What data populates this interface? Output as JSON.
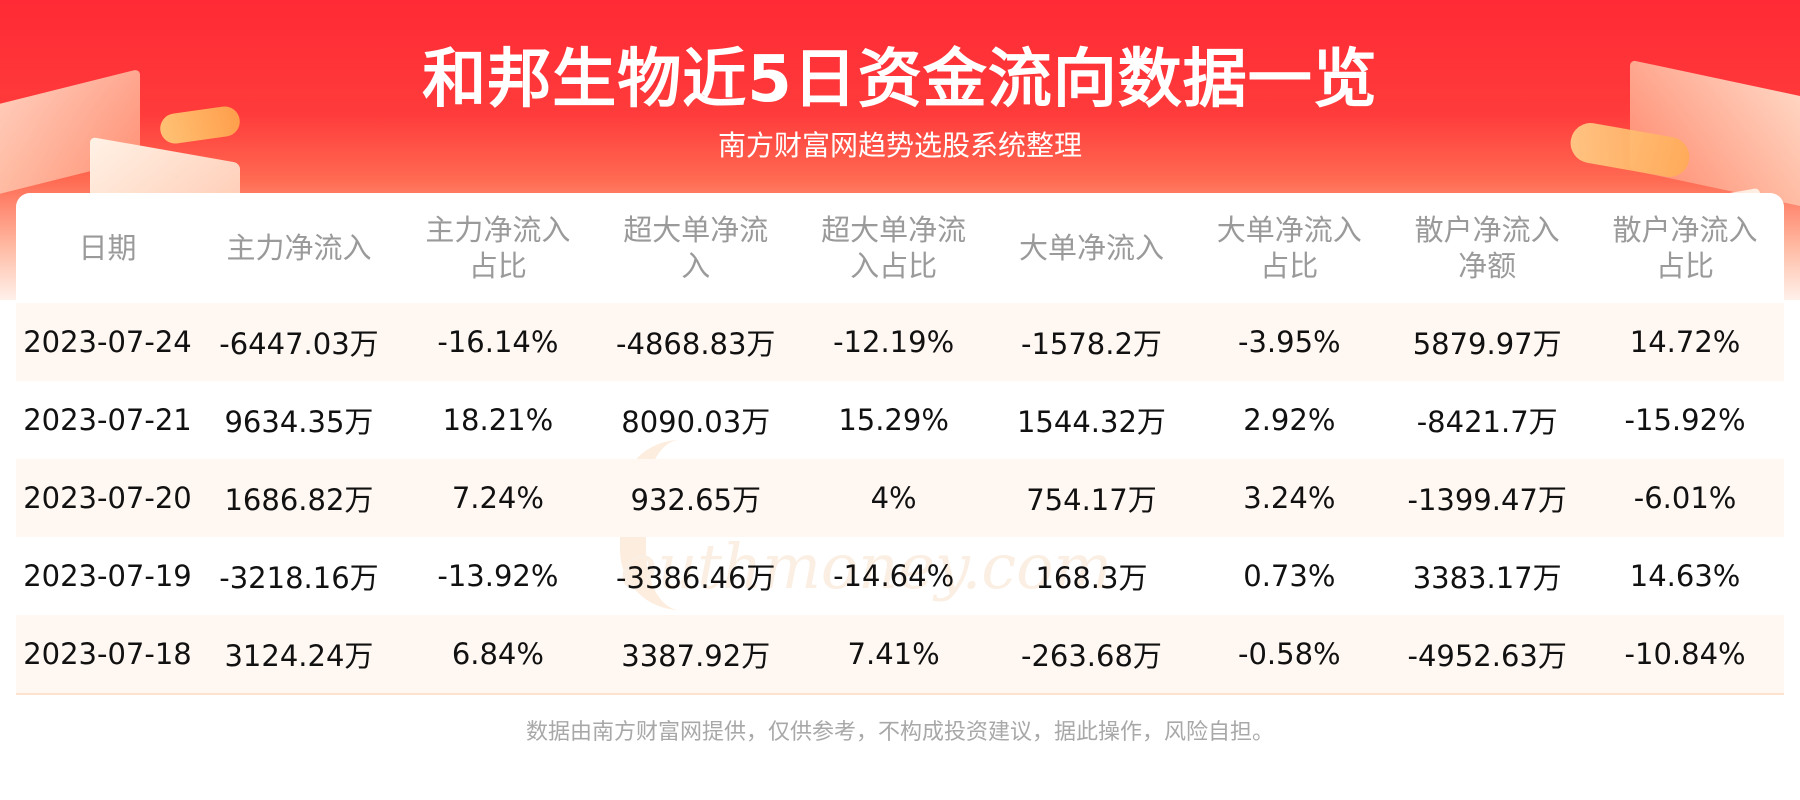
{
  "header": {
    "title": "和邦生物近5日资金流向数据一览",
    "subtitle": "南方财富网趋势选股系统整理"
  },
  "watermark": {
    "text": "南方财富网",
    "sub": "outhmoney.com"
  },
  "table": {
    "columns": [
      "日期",
      "主力净流入",
      "主力净流入占比",
      "超大单净流入",
      "超大单净流入占比",
      "大单净流入",
      "大单净流入占比",
      "散户净流入净额",
      "散户净流入占比"
    ],
    "rows": [
      [
        "2023-07-24",
        "-6447.03万",
        "-16.14%",
        "-4868.83万",
        "-12.19%",
        "-1578.2万",
        "-3.95%",
        "5879.97万",
        "14.72%"
      ],
      [
        "2023-07-21",
        "9634.35万",
        "18.21%",
        "8090.03万",
        "15.29%",
        "1544.32万",
        "2.92%",
        "-8421.7万",
        "-15.92%"
      ],
      [
        "2023-07-20",
        "1686.82万",
        "7.24%",
        "932.65万",
        "4%",
        "754.17万",
        "3.24%",
        "-1399.47万",
        "-6.01%"
      ],
      [
        "2023-07-19",
        "-3218.16万",
        "-13.92%",
        "-3386.46万",
        "-14.64%",
        "168.3万",
        "0.73%",
        "3383.17万",
        "14.63%"
      ],
      [
        "2023-07-18",
        "3124.24万",
        "6.84%",
        "3387.92万",
        "7.41%",
        "-263.68万",
        "-0.58%",
        "-4952.63万",
        "-10.84%"
      ]
    ]
  },
  "footer": {
    "disclaimer": "数据由南方财富网提供，仅供参考，不构成投资建议，据此操作，风险自担。"
  },
  "colors": {
    "banner_red": "#ff2a35",
    "row_stripe": "#fff7f2",
    "header_text": "#9a9a9a"
  }
}
